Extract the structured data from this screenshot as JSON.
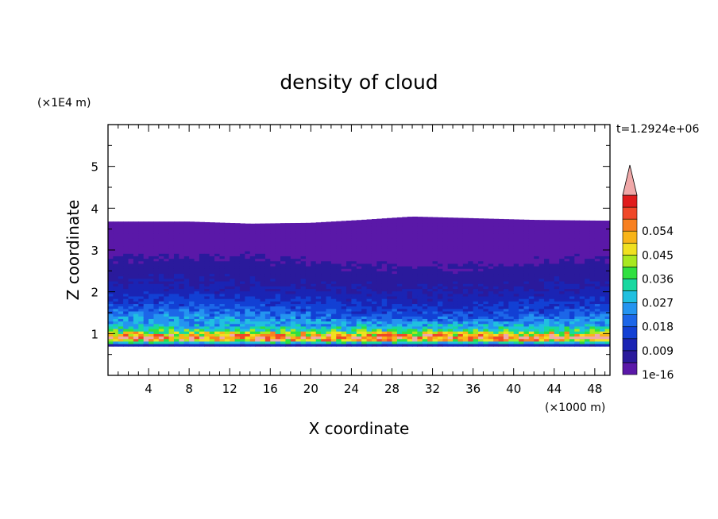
{
  "chart_data": {
    "type": "heatmap",
    "title": "density of cloud",
    "xlabel": "X coordinate",
    "ylabel": "Z coordinate",
    "x_unit": "(×1000 m)",
    "y_unit": "(×1E4 m)",
    "time_label": "t=1.2924e+06",
    "xlim": [
      0,
      49.5
    ],
    "ylim": [
      0,
      6
    ],
    "x_ticks": [
      4,
      8,
      12,
      16,
      20,
      24,
      28,
      32,
      36,
      40,
      44,
      48
    ],
    "y_ticks": [
      1,
      2,
      3,
      4,
      5
    ],
    "grid": false,
    "colorbar": {
      "labels": [
        "1e-16",
        "0.009",
        "0.018",
        "0.027",
        "0.036",
        "0.045",
        "0.054"
      ],
      "levels": [
        0,
        0.0045,
        0.009,
        0.0135,
        0.018,
        0.0225,
        0.027,
        0.0315,
        0.036,
        0.0405,
        0.045,
        0.0495,
        0.054,
        0.0585
      ],
      "colors": [
        "#5a18a8",
        "#2a1a9c",
        "#1a24b4",
        "#1240d4",
        "#1c66e8",
        "#2494f0",
        "#20c0e0",
        "#18d8a0",
        "#30e040",
        "#a8e820",
        "#f0e020",
        "#f8b418",
        "#f88020",
        "#f04828",
        "#e01c1c"
      ],
      "extend_color": "#f0a8a8"
    },
    "cloud_layer": {
      "base_z": 0.7,
      "top_z_by_x": [
        [
          0,
          3.68
        ],
        [
          8,
          3.68
        ],
        [
          14,
          3.63
        ],
        [
          20,
          3.65
        ],
        [
          25,
          3.72
        ],
        [
          30,
          3.8
        ],
        [
          36,
          3.76
        ],
        [
          42,
          3.72
        ],
        [
          49.5,
          3.7
        ]
      ],
      "profile_z": [
        0.7,
        0.75,
        0.82,
        0.9,
        0.95,
        1.0,
        1.08,
        1.2,
        1.4,
        1.6,
        1.85,
        2.1,
        2.4,
        2.8,
        3.2,
        3.7
      ],
      "profile_values": [
        0.004,
        0.014,
        0.042,
        0.058,
        0.052,
        0.044,
        0.036,
        0.027,
        0.021,
        0.016,
        0.012,
        0.009,
        0.007,
        0.004,
        0.002,
        0.001
      ]
    }
  }
}
